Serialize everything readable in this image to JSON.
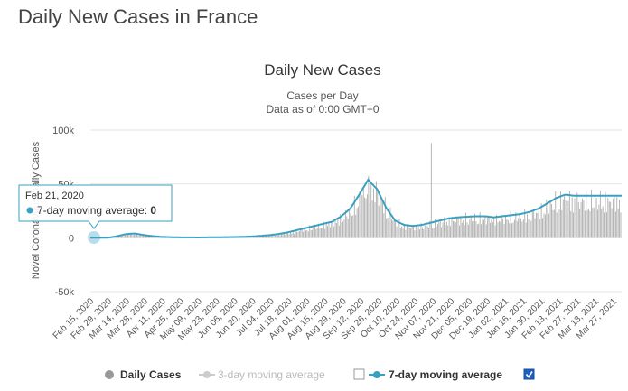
{
  "page": {
    "title": "Daily New Cases in France"
  },
  "chart_data": {
    "type": "bar",
    "title": "Daily New Cases",
    "subtitle_line1": "Cases per Day",
    "subtitle_line2": "Data as of 0:00 GMT+0",
    "ylabel": "Novel Coronavirus Daily Cases",
    "ylim": [
      -50000,
      100000
    ],
    "y_ticks": [
      {
        "value": 100000,
        "label": "100k"
      },
      {
        "value": 50000,
        "label": "50k"
      },
      {
        "value": 0,
        "label": "0"
      },
      {
        "value": -50000,
        "label": "-50k"
      }
    ],
    "x_tick_labels": [
      "Feb 15, 2020",
      "Feb 29, 2020",
      "Mar 14, 2020",
      "Mar 28, 2020",
      "Apr 11, 2020",
      "Apr 25, 2020",
      "May 09, 2020",
      "May 23, 2020",
      "Jun 06, 2020",
      "Jun 20, 2020",
      "Jul 04, 2020",
      "Jul 18, 2020",
      "Aug 01, 2020",
      "Aug 15, 2020",
      "Aug 29, 2020",
      "Sep 12, 2020",
      "Sep 26, 2020",
      "Oct 10, 2020",
      "Oct 24, 2020",
      "Nov 07, 2020",
      "Nov 21, 2020",
      "Dec 05, 2020",
      "Dec 19, 2020",
      "Jan 02, 2021",
      "Jan 16, 2021",
      "Jan 30, 2021",
      "Feb 13, 2021",
      "Feb 27, 2021",
      "Mar 13, 2021",
      "Mar 27, 2021"
    ],
    "date_range": [
      "2020-02-15",
      "2021-04-05"
    ],
    "daily_cases_weekly": [
      0,
      0,
      100,
      1500,
      3500,
      4000,
      2500,
      1500,
      800,
      600,
      400,
      350,
      300,
      400,
      500,
      600,
      700,
      900,
      1200,
      1800,
      2500,
      3500,
      5000,
      7000,
      9000,
      11000,
      13000,
      15000,
      20000,
      27000,
      40000,
      52000,
      48000,
      30000,
      17000,
      12000,
      11000,
      12000,
      14000,
      16000,
      18000,
      19000,
      19500,
      20000,
      20000,
      19000,
      20000,
      21000,
      22000,
      24000,
      27000,
      32000,
      37000,
      40000,
      38000
    ],
    "moving_avg_weekly": [
      0,
      0,
      100,
      1500,
      3500,
      4000,
      2500,
      1500,
      800,
      600,
      400,
      350,
      300,
      400,
      500,
      600,
      700,
      900,
      1200,
      1800,
      2500,
      3500,
      5000,
      7000,
      9000,
      11000,
      13000,
      15000,
      20000,
      27000,
      40000,
      54000,
      45000,
      28000,
      16000,
      12000,
      11000,
      12000,
      14000,
      16000,
      18000,
      19000,
      19500,
      20000,
      20000,
      19000,
      20000,
      21000,
      22000,
      24000,
      27000,
      32000,
      37000,
      40000,
      39000
    ],
    "peak_daily": {
      "date": "2020-11-07",
      "value": 88000
    },
    "series": [
      {
        "name": "Daily Cases",
        "color": "#aaaaaa",
        "visible": true
      },
      {
        "name": "3-day moving average",
        "color": "#cccccc",
        "visible": false
      },
      {
        "name": "7-day moving average",
        "color": "#3aa0c0",
        "visible": true
      }
    ],
    "tooltip": {
      "date": "Feb 21, 2020",
      "series": "7-day moving average",
      "value": "0"
    },
    "colors": {
      "bars": "#aaaaaa",
      "line": "#3aa0c0",
      "grid": "#e6e6e6",
      "tooltip_border": "#3aa0c0",
      "checkbox": "#1a5fbf"
    }
  }
}
